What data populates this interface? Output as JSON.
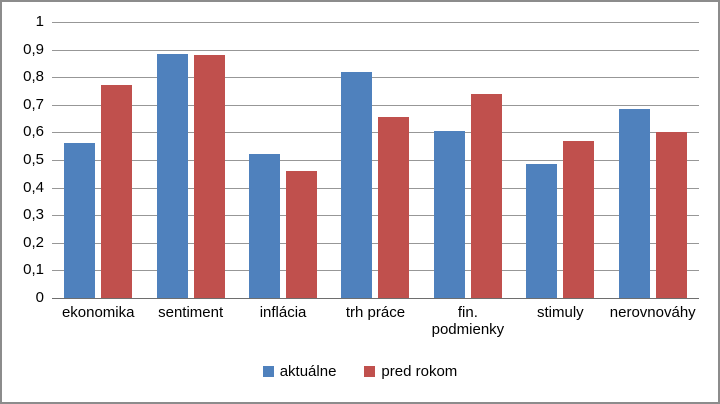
{
  "chart_data": {
    "type": "bar",
    "categories": [
      "ekonomika",
      "sentiment",
      "inflácia",
      "trh práce",
      "fin.\npodmienky",
      "stimuly",
      "nerovnováhy"
    ],
    "series": [
      {
        "name": "aktuálne",
        "color": "#4F81BD",
        "values": [
          0.56,
          0.885,
          0.52,
          0.82,
          0.605,
          0.485,
          0.685
        ]
      },
      {
        "name": "pred rokom",
        "color": "#C0504D",
        "values": [
          0.77,
          0.88,
          0.46,
          0.655,
          0.74,
          0.57,
          0.6
        ]
      }
    ],
    "title": "",
    "xlabel": "",
    "ylabel": "",
    "ylim": [
      0,
      1
    ],
    "y_ticks": [
      "0",
      "0,1",
      "0,2",
      "0,3",
      "0,4",
      "0,5",
      "0,6",
      "0,7",
      "0,8",
      "0,9",
      "1"
    ],
    "grid": true,
    "legend_position": "bottom",
    "colors": {
      "gridline": "#979797",
      "axis_line": "#6e6e6e",
      "frame_border": "#8c8c8c",
      "text": "#000000"
    }
  }
}
